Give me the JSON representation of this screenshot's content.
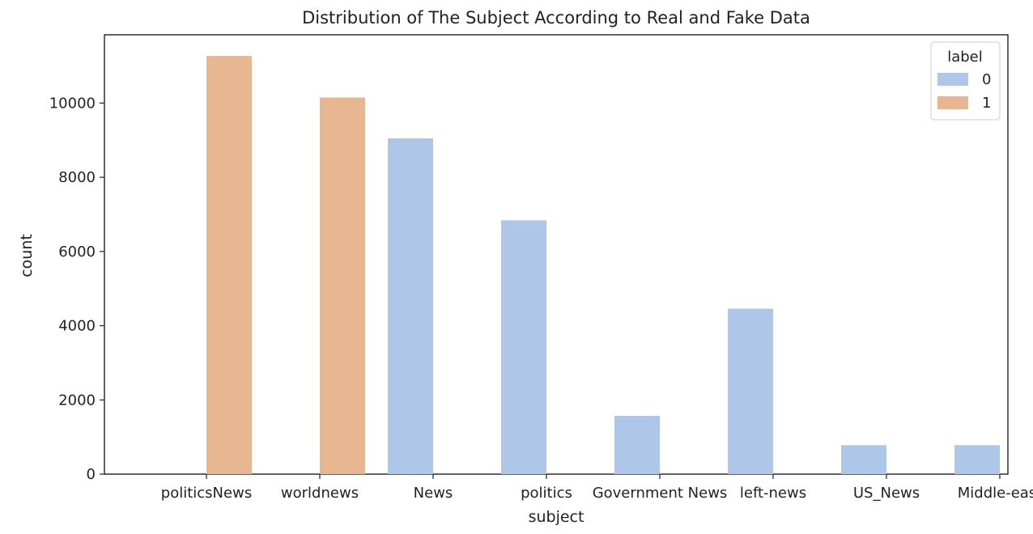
{
  "chart_data": {
    "type": "bar",
    "title": "Distribution of The Subject According to Real and Fake Data",
    "xlabel": "subject",
    "ylabel": "count",
    "categories": [
      "politicsNews",
      "worldnews",
      "News",
      "politics",
      "Government News",
      "left-news",
      "US_News",
      "Middle-east"
    ],
    "series": [
      {
        "name": "0",
        "color": "#aec7e8",
        "values": [
          0,
          0,
          9050,
          6840,
          1570,
          4460,
          780,
          780
        ]
      },
      {
        "name": "1",
        "color": "#e8b792",
        "values": [
          11270,
          10150,
          0,
          0,
          0,
          0,
          0,
          0
        ]
      }
    ],
    "ylim": [
      0,
      11840
    ],
    "yticks": [
      0,
      2000,
      4000,
      6000,
      8000,
      10000
    ],
    "legend": {
      "title": "label",
      "placement": "top-right"
    },
    "grid": false
  }
}
